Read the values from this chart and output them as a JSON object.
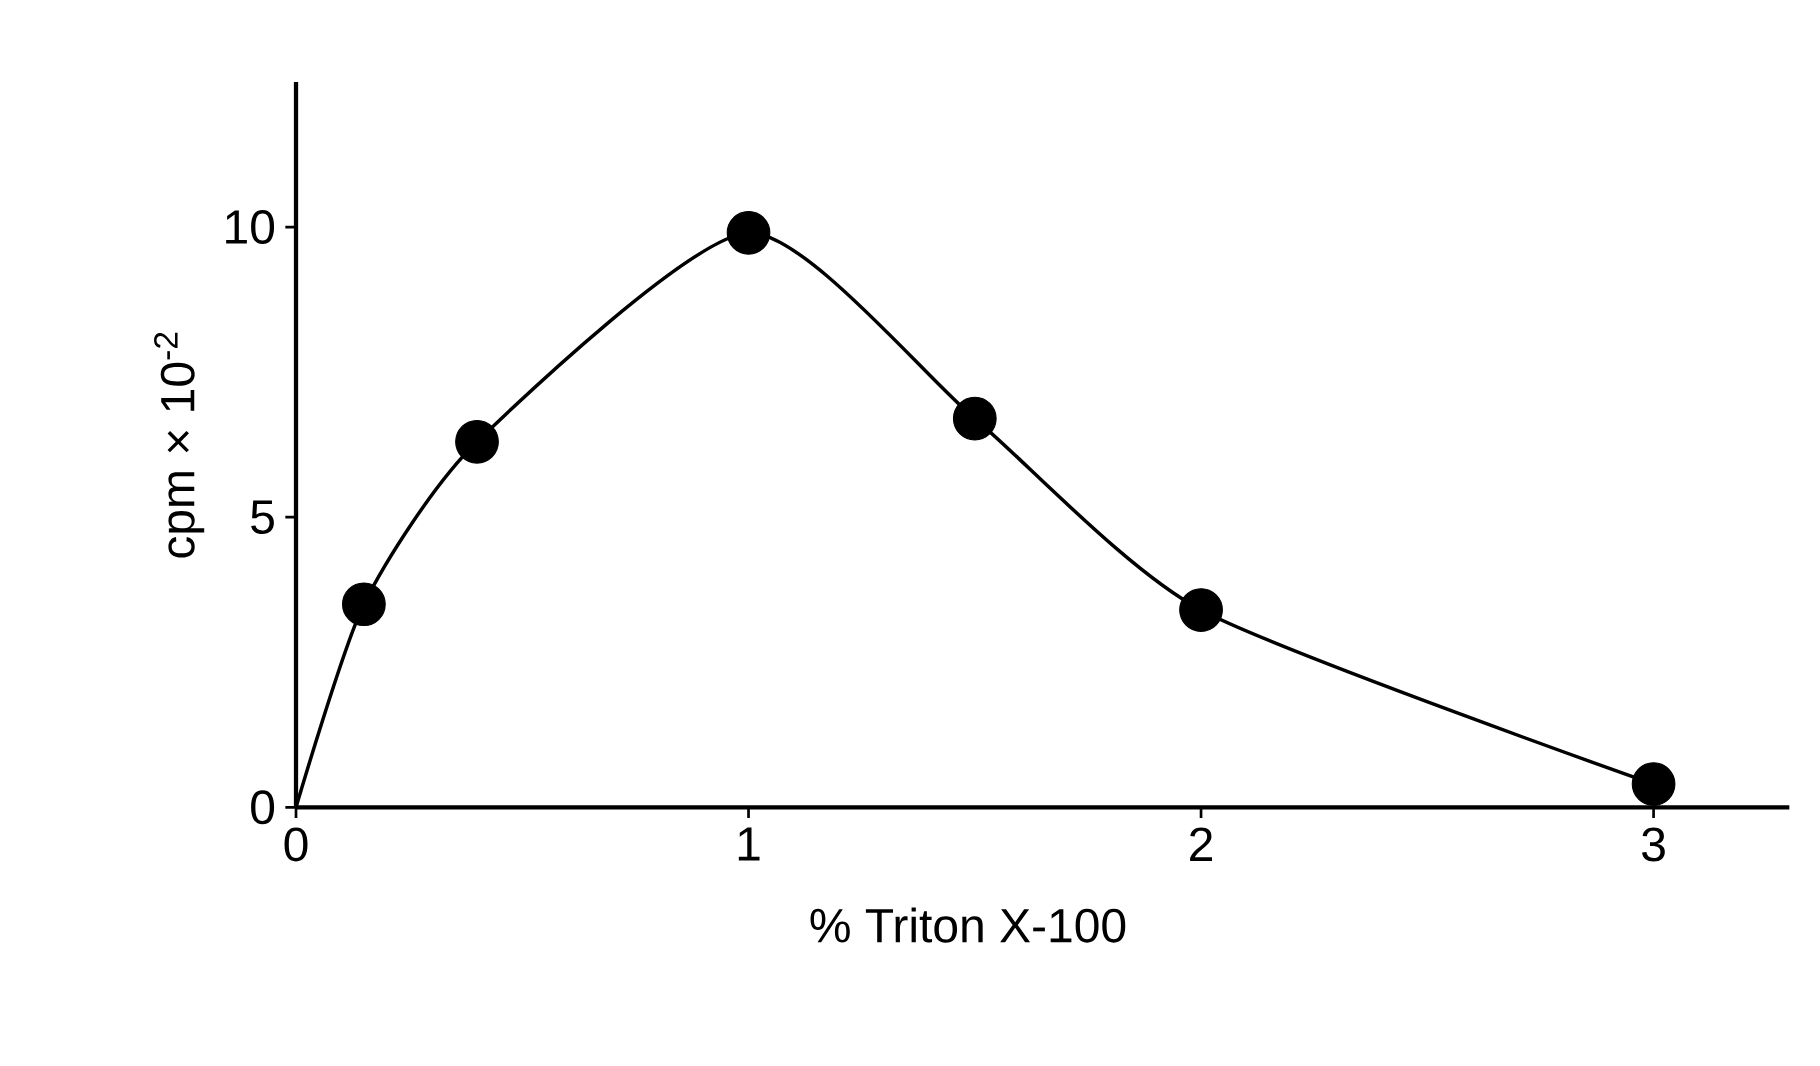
{
  "chart_data": {
    "type": "scatter",
    "xlabel": "% Triton X-100",
    "ylabel": "cpm × 10$^{-2}$",
    "xlim": [
      0,
      3.3
    ],
    "ylim": [
      0,
      12.5
    ],
    "xticks": [
      0,
      1,
      2,
      3
    ],
    "yticks": [
      0,
      5,
      10
    ],
    "grid": false,
    "series": [
      {
        "type": "line",
        "x": [
          0,
          0.15,
          0.4,
          1,
          1.5,
          2,
          3
        ],
        "values": [
          0,
          3.5,
          6.3,
          9.9,
          6.7,
          3.4,
          0.4
        ],
        "color": "#000000",
        "marker": "none",
        "line_style": "solid"
      },
      {
        "x": [
          0.15,
          0.4,
          1,
          1.5,
          2,
          3
        ],
        "values": [
          3.5,
          6.3,
          9.9,
          6.7,
          3.4,
          0.4
        ],
        "color": "#000000",
        "marker": "circle"
      }
    ]
  }
}
